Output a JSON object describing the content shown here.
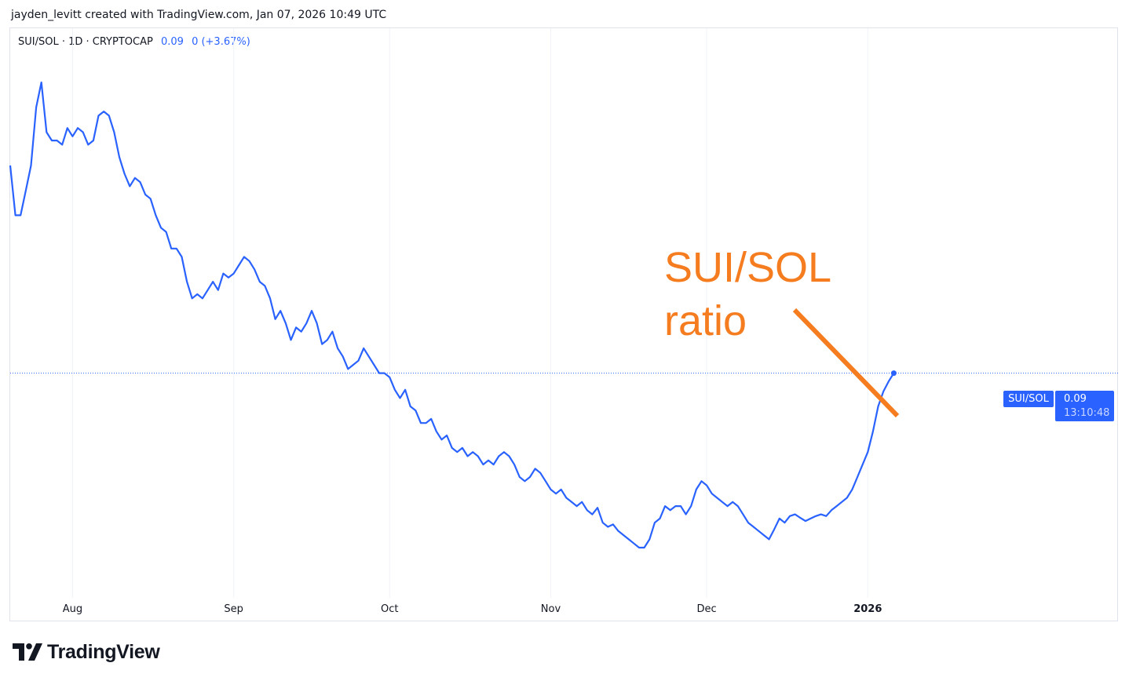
{
  "credit": "jayden_levitt created with TradingView.com, Jan 07, 2026 10:49 UTC",
  "legend": {
    "symbol": "SUI/SOL · 1D · CRYPTOCAP",
    "value": "0.09",
    "change": "0 (+3.67%)"
  },
  "price_tag": {
    "label": "SUI/SOL",
    "price": "0.09",
    "countdown": "13:10:48"
  },
  "annotation": {
    "line1": "SUI/SOL",
    "line2": "ratio",
    "color": "#f57c1f"
  },
  "logo": {
    "text": "TradingView",
    "icon": "tradingview-logo-icon"
  },
  "colors": {
    "series": "#2962ff",
    "grid": "#f0f3fa",
    "annotation": "#f57c1f"
  },
  "chart_data": {
    "type": "line",
    "x_ticks": [
      {
        "label": "Aug",
        "day": 0,
        "bold": false
      },
      {
        "label": "Sep",
        "day": 31,
        "bold": false
      },
      {
        "label": "Oct",
        "day": 61,
        "bold": false
      },
      {
        "label": "Nov",
        "day": 92,
        "bold": false
      },
      {
        "label": "Dec",
        "day": 122,
        "bold": false
      },
      {
        "label": "2026",
        "day": 153,
        "bold": true
      }
    ],
    "series": [
      {
        "values": [
          0.115,
          0.109,
          0.109,
          0.112,
          0.115,
          0.122,
          0.125,
          0.119,
          0.118,
          0.118,
          0.1175,
          0.1195,
          0.1185,
          0.1195,
          0.119,
          0.1175,
          0.118,
          0.121,
          0.1215,
          0.121,
          0.119,
          0.116,
          0.114,
          0.1125,
          0.1135,
          0.113,
          0.1115,
          0.111,
          0.109,
          0.1075,
          0.107,
          0.105,
          0.105,
          0.104,
          0.101,
          0.099,
          0.0995,
          0.099,
          0.1,
          0.101,
          0.1,
          0.102,
          0.1015,
          0.102,
          0.103,
          0.104,
          0.1035,
          0.1025,
          0.101,
          0.1005,
          0.099,
          0.0965,
          0.0975,
          0.096,
          0.094,
          0.0955,
          0.095,
          0.096,
          0.0975,
          0.096,
          0.0935,
          0.094,
          0.095,
          0.093,
          0.092,
          0.0905,
          0.091,
          0.0915,
          0.093,
          0.092,
          0.091,
          0.09,
          0.09,
          0.0895,
          0.088,
          0.087,
          0.088,
          0.086,
          0.0855,
          0.084,
          0.084,
          0.0845,
          0.083,
          0.082,
          0.0825,
          0.081,
          0.0805,
          0.081,
          0.08,
          0.0805,
          0.08,
          0.079,
          0.0795,
          0.079,
          0.08,
          0.0805,
          0.08,
          0.079,
          0.0775,
          0.077,
          0.0775,
          0.0785,
          0.078,
          0.077,
          0.076,
          0.0755,
          0.076,
          0.075,
          0.0745,
          0.074,
          0.0745,
          0.0735,
          0.073,
          0.0738,
          0.072,
          0.0715,
          0.0718,
          0.071,
          0.0705,
          0.07,
          0.0695,
          0.069,
          0.069,
          0.07,
          0.072,
          0.0725,
          0.074,
          0.0735,
          0.074,
          0.074,
          0.073,
          0.074,
          0.076,
          0.077,
          0.0765,
          0.0755,
          0.075,
          0.0745,
          0.074,
          0.0745,
          0.074,
          0.073,
          0.072,
          0.0715,
          0.071,
          0.0705,
          0.07,
          0.0712,
          0.0725,
          0.072,
          0.0728,
          0.073,
          0.0726,
          0.0722,
          0.0725,
          0.0728,
          0.073,
          0.0728,
          0.0735,
          0.074,
          0.0745,
          0.075,
          0.076,
          0.0775,
          0.079,
          0.0805,
          0.083,
          0.086,
          0.0878,
          0.089,
          0.09
        ]
      }
    ]
  }
}
